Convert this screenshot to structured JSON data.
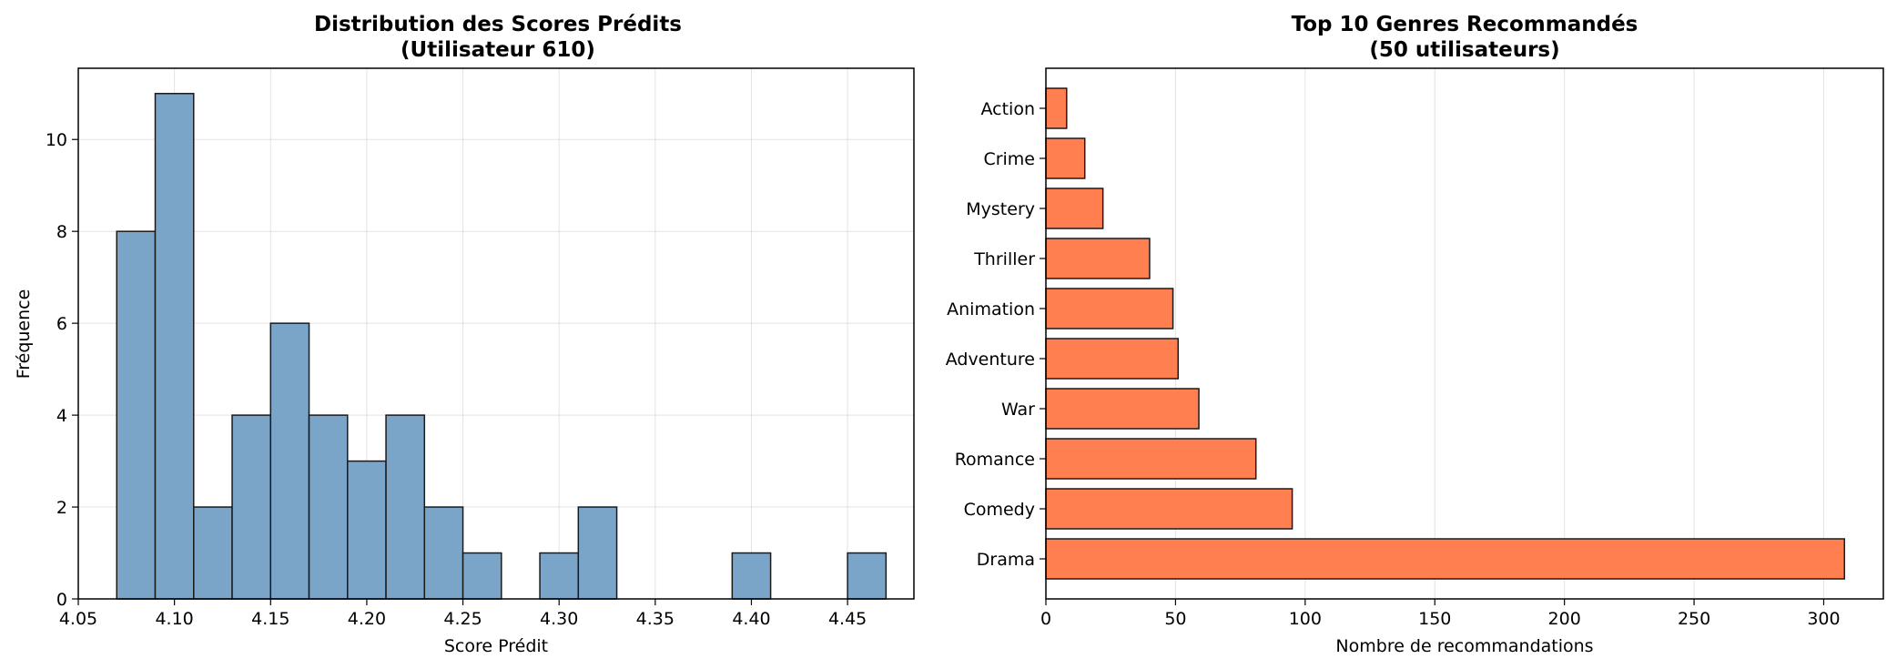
{
  "chart_data": [
    {
      "type": "bar",
      "subtype": "histogram",
      "title": "Distribution des Scores Prédits",
      "subtitle": "(Utilisateur 610)",
      "xlabel": "Score Prédit",
      "ylabel": "Fréquence",
      "xlim": [
        4.05,
        4.4845
      ],
      "ylim": [
        0,
        11.55
      ],
      "xticks": [
        "4.05",
        "4.10",
        "4.15",
        "4.20",
        "4.25",
        "4.30",
        "4.35",
        "4.40",
        "4.45"
      ],
      "yticks": [
        "0",
        "2",
        "4",
        "6",
        "8",
        "10"
      ],
      "grid": true,
      "bins": [
        {
          "x0": 4.07,
          "x1": 4.09,
          "count": 8
        },
        {
          "x0": 4.09,
          "x1": 4.11,
          "count": 11
        },
        {
          "x0": 4.11,
          "x1": 4.13,
          "count": 2
        },
        {
          "x0": 4.13,
          "x1": 4.15,
          "count": 4
        },
        {
          "x0": 4.15,
          "x1": 4.17,
          "count": 6
        },
        {
          "x0": 4.17,
          "x1": 4.19,
          "count": 4
        },
        {
          "x0": 4.19,
          "x1": 4.21,
          "count": 3
        },
        {
          "x0": 4.21,
          "x1": 4.23,
          "count": 4
        },
        {
          "x0": 4.23,
          "x1": 4.25,
          "count": 2
        },
        {
          "x0": 4.25,
          "x1": 4.27,
          "count": 1
        },
        {
          "x0": 4.27,
          "x1": 4.29,
          "count": 0
        },
        {
          "x0": 4.29,
          "x1": 4.31,
          "count": 1
        },
        {
          "x0": 4.31,
          "x1": 4.33,
          "count": 2
        },
        {
          "x0": 4.33,
          "x1": 4.35,
          "count": 0
        },
        {
          "x0": 4.35,
          "x1": 4.37,
          "count": 0
        },
        {
          "x0": 4.37,
          "x1": 4.39,
          "count": 0
        },
        {
          "x0": 4.39,
          "x1": 4.41,
          "count": 1
        },
        {
          "x0": 4.41,
          "x1": 4.43,
          "count": 0
        },
        {
          "x0": 4.43,
          "x1": 4.45,
          "count": 0
        },
        {
          "x0": 4.45,
          "x1": 4.47,
          "count": 1
        }
      ],
      "color": "#7BA4C9",
      "edgecolor": "#1a1a1a"
    },
    {
      "type": "bar",
      "orientation": "horizontal",
      "title": "Top 10 Genres Recommandés",
      "subtitle": "(50 utilisateurs)",
      "xlabel": "Nombre de recommandations",
      "ylabel": "",
      "xlim": [
        0,
        323
      ],
      "xticks": [
        "0",
        "50",
        "100",
        "150",
        "200",
        "250",
        "300"
      ],
      "grid": true,
      "categories": [
        "Drama",
        "Comedy",
        "Romance",
        "War",
        "Adventure",
        "Animation",
        "Thriller",
        "Mystery",
        "Crime",
        "Action"
      ],
      "values": [
        308,
        95,
        81,
        59,
        51,
        49,
        40,
        22,
        15,
        8
      ],
      "color": "#FF7F50",
      "edgecolor": "#1a1a1a"
    }
  ]
}
